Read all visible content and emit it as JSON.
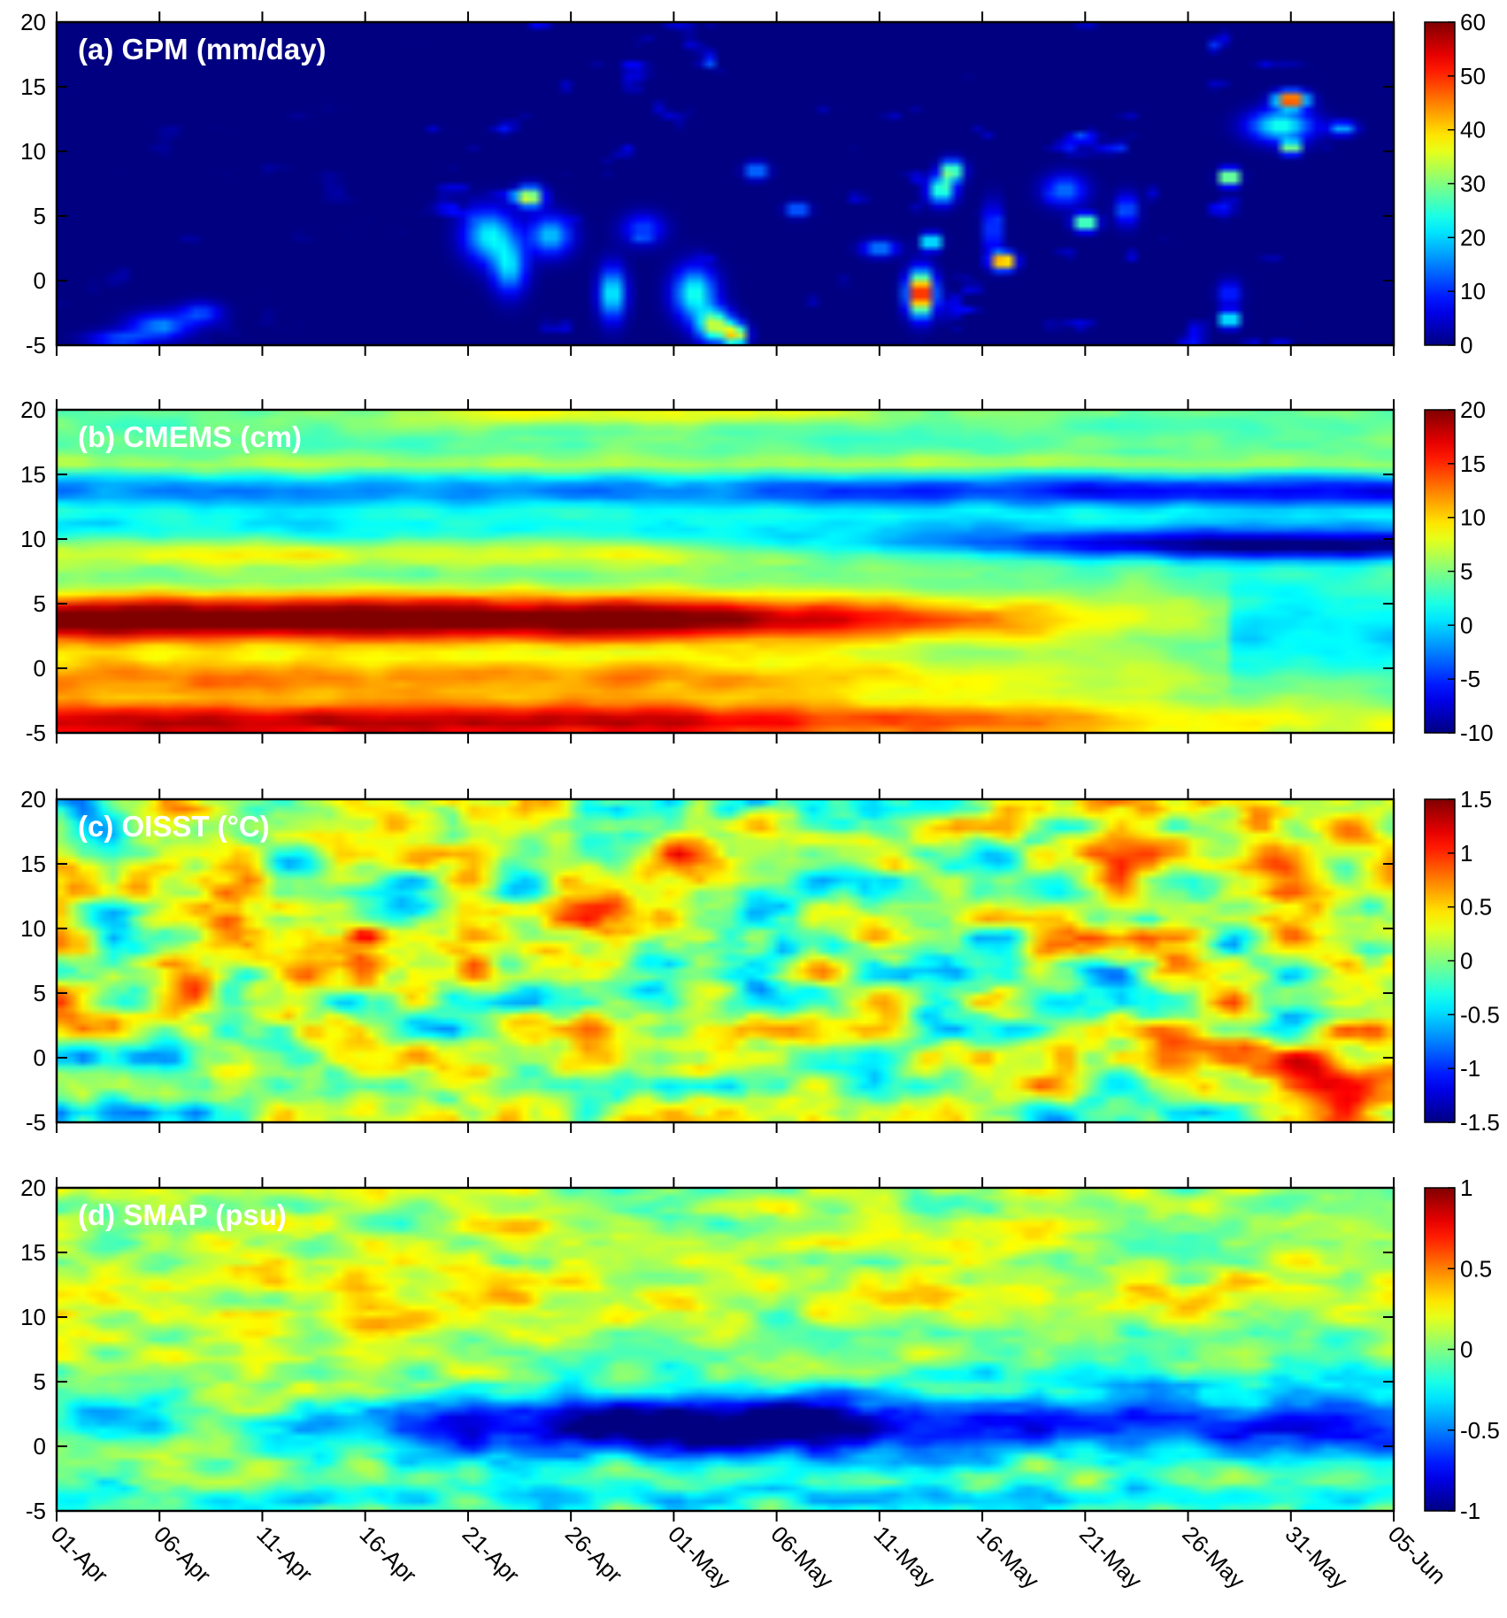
{
  "chart_data": [
    {
      "type": "heatmap",
      "title": "(a) GPM (mm/day)",
      "yticks": [
        "-5",
        "0",
        "5",
        "10",
        "15",
        "20"
      ],
      "ylim": [
        -5,
        20
      ],
      "colorbar": {
        "ticks": [
          "0",
          "10",
          "20",
          "30",
          "40",
          "50",
          "60"
        ],
        "range": [
          0,
          60
        ],
        "colormap": "jet"
      },
      "features": [
        {
          "day": 3,
          "lat": -4.5,
          "value": 12,
          "wd": 1.5,
          "wl": 0.6
        },
        {
          "day": 5,
          "lat": -3.5,
          "value": 15,
          "wd": 1.5,
          "wl": 1.0
        },
        {
          "day": 7,
          "lat": -2.5,
          "value": 12,
          "wd": 1.0,
          "wl": 0.8
        },
        {
          "day": 21,
          "lat": 3.5,
          "value": 22,
          "wd": 1.2,
          "wl": 2.0
        },
        {
          "day": 22,
          "lat": 1.0,
          "value": 20,
          "wd": 0.8,
          "wl": 2.0
        },
        {
          "day": 23,
          "lat": 6.5,
          "value": 35,
          "wd": 0.6,
          "wl": 0.8
        },
        {
          "day": 24,
          "lat": 3.5,
          "value": 20,
          "wd": 1.0,
          "wl": 1.5
        },
        {
          "day": 27,
          "lat": -1.0,
          "value": 25,
          "wd": 0.6,
          "wl": 2.0
        },
        {
          "day": 28.5,
          "lat": 4.0,
          "value": 12,
          "wd": 1.0,
          "wl": 1.2
        },
        {
          "day": 31,
          "lat": -1.0,
          "value": 25,
          "wd": 1.0,
          "wl": 2.0
        },
        {
          "day": 32,
          "lat": -3.5,
          "value": 35,
          "wd": 0.8,
          "wl": 1.2
        },
        {
          "day": 33,
          "lat": -4.2,
          "value": 40,
          "wd": 0.5,
          "wl": 0.8
        },
        {
          "day": 34,
          "lat": 8.5,
          "value": 20,
          "wd": 0.5,
          "wl": 0.6
        },
        {
          "day": 36,
          "lat": 5.5,
          "value": 20,
          "wd": 0.5,
          "wl": 0.5
        },
        {
          "day": 40,
          "lat": 2.5,
          "value": 18,
          "wd": 0.8,
          "wl": 0.6
        },
        {
          "day": 42,
          "lat": -1.0,
          "value": 60,
          "wd": 0.6,
          "wl": 1.6
        },
        {
          "day": 42.5,
          "lat": 3.0,
          "value": 35,
          "wd": 0.4,
          "wl": 0.6
        },
        {
          "day": 43,
          "lat": 7.0,
          "value": 30,
          "wd": 0.6,
          "wl": 1.0
        },
        {
          "day": 43.5,
          "lat": 8.5,
          "value": 35,
          "wd": 0.5,
          "wl": 0.8
        },
        {
          "day": 46,
          "lat": 1.5,
          "value": 60,
          "wd": 0.5,
          "wl": 0.6
        },
        {
          "day": 45.5,
          "lat": 4.0,
          "value": 15,
          "wd": 0.4,
          "wl": 2.0
        },
        {
          "day": 50,
          "lat": 4.5,
          "value": 40,
          "wd": 0.5,
          "wl": 0.6
        },
        {
          "day": 49,
          "lat": 7.0,
          "value": 15,
          "wd": 1.0,
          "wl": 1.2
        },
        {
          "day": 52,
          "lat": 5.5,
          "value": 15,
          "wd": 0.5,
          "wl": 1.2
        },
        {
          "day": 57,
          "lat": 8.0,
          "value": 50,
          "wd": 0.4,
          "wl": 0.6
        },
        {
          "day": 57,
          "lat": -3.0,
          "value": 35,
          "wd": 0.4,
          "wl": 0.6
        },
        {
          "day": 57,
          "lat": -1.0,
          "value": 12,
          "wd": 0.5,
          "wl": 1.0
        },
        {
          "day": 60,
          "lat": 14.0,
          "value": 60,
          "wd": 0.7,
          "wl": 0.6
        },
        {
          "day": 59.5,
          "lat": 12.0,
          "value": 25,
          "wd": 1.5,
          "wl": 1.2
        },
        {
          "day": 60,
          "lat": 10.3,
          "value": 40,
          "wd": 0.4,
          "wl": 0.5
        },
        {
          "day": 62.5,
          "lat": 11.8,
          "value": 20,
          "wd": 0.6,
          "wl": 0.5
        }
      ]
    },
    {
      "type": "heatmap",
      "title": "(b) CMEMS (cm)",
      "yticks": [
        "-5",
        "0",
        "5",
        "10",
        "15",
        "20"
      ],
      "ylim": [
        -5,
        20
      ],
      "colorbar": {
        "ticks": [
          "-10",
          "-5",
          "0",
          "5",
          "10",
          "15",
          "20"
        ],
        "range": [
          -10,
          20
        ],
        "colormap": "jet"
      }
    },
    {
      "type": "heatmap",
      "title": "(c) OISST (°C)",
      "yticks": [
        "-5",
        "0",
        "5",
        "10",
        "15",
        "20"
      ],
      "ylim": [
        -5,
        20
      ],
      "colorbar": {
        "ticks": [
          "-1.5",
          "-1",
          "-0.5",
          "0",
          "0.5",
          "1",
          "1.5"
        ],
        "range": [
          -1.5,
          1.5
        ],
        "colormap": "jet"
      }
    },
    {
      "type": "heatmap",
      "title": "(d) SMAP (psu)",
      "yticks": [
        "-5",
        "0",
        "5",
        "10",
        "15",
        "20"
      ],
      "ylim": [
        -5,
        20
      ],
      "colorbar": {
        "ticks": [
          "-1",
          "-0.5",
          "0",
          "0.5",
          "1"
        ],
        "range": [
          -1,
          1
        ],
        "colormap": "jet"
      }
    }
  ],
  "xaxis": {
    "tick_labels": [
      "01-Apr",
      "06-Apr",
      "11-Apr",
      "16-Apr",
      "21-Apr",
      "26-Apr",
      "01-May",
      "06-May",
      "11-May",
      "16-May",
      "21-May",
      "26-May",
      "31-May",
      "05-Jun"
    ],
    "days_range": [
      0,
      65
    ]
  }
}
